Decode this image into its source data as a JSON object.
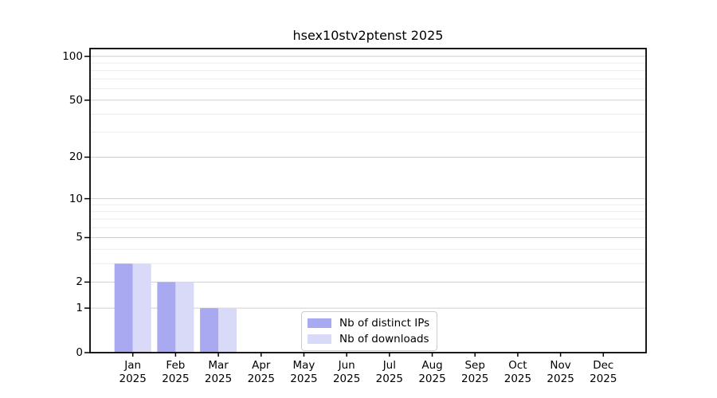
{
  "chart_data": {
    "type": "bar",
    "title": "hsex10stv2ptenst 2025",
    "categories": [
      "Jan 2025",
      "Feb 2025",
      "Mar 2025",
      "Apr 2025",
      "May 2025",
      "Jun 2025",
      "Jul 2025",
      "Aug 2025",
      "Sep 2025",
      "Oct 2025",
      "Nov 2025",
      "Dec 2025"
    ],
    "series": [
      {
        "name": "Nb of distinct IPs",
        "color": "#a9a9f2",
        "values": [
          3,
          2,
          1,
          0,
          0,
          0,
          0,
          0,
          0,
          0,
          0,
          0
        ]
      },
      {
        "name": "Nb of downloads",
        "color": "#d9d9f8",
        "values": [
          3,
          2,
          1,
          0,
          0,
          0,
          0,
          0,
          0,
          0,
          0,
          0
        ]
      }
    ],
    "yscale": "log1p",
    "ylim": [
      0,
      113
    ],
    "yticks": [
      0,
      1,
      2,
      5,
      10,
      20,
      50,
      100
    ],
    "yticks_minor": [
      3,
      4,
      6,
      7,
      8,
      9,
      30,
      40,
      60,
      70,
      80,
      90
    ],
    "grid": true,
    "legend_position": "lower-center",
    "colors": {
      "grid_major": "#cfcfcf",
      "grid_minor": "#ebebeb",
      "spine": "#000000",
      "tick": "#000000",
      "background": "#ffffff"
    }
  }
}
